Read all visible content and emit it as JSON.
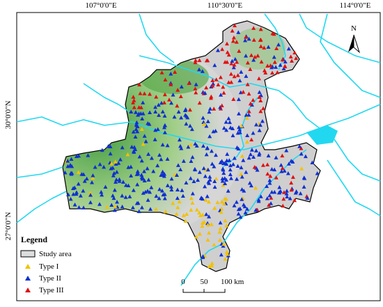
{
  "graticule": {
    "top": [
      "107°0'0\"E",
      "110°30'0\"E",
      "114°0'0\"E"
    ],
    "left": [
      "30°0'0\"N",
      "27°0'0\"N"
    ]
  },
  "north": "N",
  "legend": {
    "title": "Legend",
    "items": [
      "Study area",
      "Type I",
      "Type II",
      "Type III"
    ]
  },
  "scale_bar": [
    "0",
    "50",
    "100 km"
  ]
}
